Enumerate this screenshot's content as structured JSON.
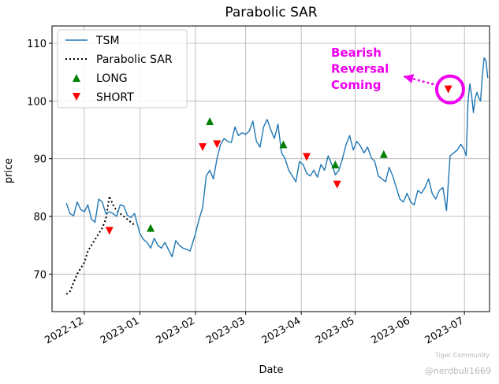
{
  "chart_data": {
    "type": "line",
    "title": "Parabolic SAR",
    "xlabel": "Date",
    "ylabel": "price",
    "ylim": [
      63.5,
      113
    ],
    "xlim": [
      "2022-11-13",
      "2023-07-15"
    ],
    "grid": true,
    "x_ticks": [
      {
        "date": "2022-12-01",
        "label": "2022-12"
      },
      {
        "date": "2023-01-01",
        "label": "2023-01"
      },
      {
        "date": "2023-02-01",
        "label": "2023-02"
      },
      {
        "date": "2023-03-01",
        "label": "2023-03"
      },
      {
        "date": "2023-04-01",
        "label": "2023-04"
      },
      {
        "date": "2023-05-01",
        "label": "2023-05"
      },
      {
        "date": "2023-06-01",
        "label": "2023-06"
      },
      {
        "date": "2023-07-01",
        "label": "2023-07"
      }
    ],
    "y_ticks": [
      70,
      80,
      90,
      100,
      110
    ],
    "legend": {
      "position": "top-left",
      "entries": [
        {
          "label": "TSM",
          "kind": "line"
        },
        {
          "label": "Parabolic SAR",
          "kind": "dotted"
        },
        {
          "label": "LONG",
          "kind": "marker-up"
        },
        {
          "label": "SHORT",
          "kind": "marker-down"
        }
      ]
    },
    "series": [
      {
        "name": "TSM",
        "color": "#1f77b4",
        "points": [
          [
            "2022-11-21",
            82.3
          ],
          [
            "2022-11-23",
            80.5
          ],
          [
            "2022-11-25",
            80.1
          ],
          [
            "2022-11-27",
            82.5
          ],
          [
            "2022-11-29",
            81.2
          ],
          [
            "2022-12-01",
            80.8
          ],
          [
            "2022-12-03",
            82.0
          ],
          [
            "2022-12-05",
            79.5
          ],
          [
            "2022-12-07",
            79.0
          ],
          [
            "2022-12-09",
            83.0
          ],
          [
            "2022-12-11",
            82.5
          ],
          [
            "2022-12-13",
            80.5
          ],
          [
            "2022-12-15",
            80.8
          ],
          [
            "2022-12-17",
            80.5
          ],
          [
            "2022-12-19",
            80.0
          ],
          [
            "2022-12-21",
            82.0
          ],
          [
            "2022-12-23",
            81.8
          ],
          [
            "2022-12-25",
            80.2
          ],
          [
            "2022-12-27",
            79.8
          ],
          [
            "2022-12-29",
            80.5
          ],
          [
            "2023-01-01",
            77.0
          ],
          [
            "2023-01-03",
            76.0
          ],
          [
            "2023-01-05",
            75.5
          ],
          [
            "2023-01-07",
            74.5
          ],
          [
            "2023-01-09",
            76.2
          ],
          [
            "2023-01-11",
            75.0
          ],
          [
            "2023-01-13",
            74.5
          ],
          [
            "2023-01-15",
            75.5
          ],
          [
            "2023-01-17",
            74.2
          ],
          [
            "2023-01-19",
            73.0
          ],
          [
            "2023-01-21",
            75.8
          ],
          [
            "2023-01-23",
            75.0
          ],
          [
            "2023-01-25",
            74.5
          ],
          [
            "2023-01-27",
            74.3
          ],
          [
            "2023-01-29",
            74.0
          ],
          [
            "2023-01-30",
            75.0
          ],
          [
            "2023-02-01",
            77.0
          ],
          [
            "2023-02-03",
            79.5
          ],
          [
            "2023-02-05",
            81.5
          ],
          [
            "2023-02-07",
            87.0
          ],
          [
            "2023-02-09",
            88.0
          ],
          [
            "2023-02-11",
            86.5
          ],
          [
            "2023-02-13",
            90.0
          ],
          [
            "2023-02-15",
            92.5
          ],
          [
            "2023-02-17",
            93.5
          ],
          [
            "2023-02-19",
            93.0
          ],
          [
            "2023-02-21",
            92.8
          ],
          [
            "2023-02-23",
            95.5
          ],
          [
            "2023-02-25",
            94.0
          ],
          [
            "2023-02-27",
            94.5
          ],
          [
            "2023-03-01",
            94.2
          ],
          [
            "2023-03-03",
            94.8
          ],
          [
            "2023-03-05",
            96.5
          ],
          [
            "2023-03-07",
            93.0
          ],
          [
            "2023-03-09",
            92.0
          ],
          [
            "2023-03-11",
            95.5
          ],
          [
            "2023-03-13",
            96.8
          ],
          [
            "2023-03-15",
            95.0
          ],
          [
            "2023-03-17",
            93.5
          ],
          [
            "2023-03-19",
            96.0
          ],
          [
            "2023-03-21",
            91.0
          ],
          [
            "2023-03-23",
            90.0
          ],
          [
            "2023-03-25",
            88.0
          ],
          [
            "2023-03-27",
            87.0
          ],
          [
            "2023-03-29",
            86.0
          ],
          [
            "2023-03-31",
            89.5
          ],
          [
            "2023-04-02",
            89.0
          ],
          [
            "2023-04-04",
            87.5
          ],
          [
            "2023-04-06",
            87.0
          ],
          [
            "2023-04-08",
            88.0
          ],
          [
            "2023-04-10",
            86.8
          ],
          [
            "2023-04-12",
            89.0
          ],
          [
            "2023-04-14",
            88.0
          ],
          [
            "2023-04-16",
            90.5
          ],
          [
            "2023-04-18",
            89.0
          ],
          [
            "2023-04-20",
            87.2
          ],
          [
            "2023-04-22",
            88.0
          ],
          [
            "2023-04-24",
            90.0
          ],
          [
            "2023-04-26",
            92.5
          ],
          [
            "2023-04-28",
            94.0
          ],
          [
            "2023-04-30",
            91.5
          ],
          [
            "2023-05-02",
            93.0
          ],
          [
            "2023-05-04",
            92.2
          ],
          [
            "2023-05-06",
            91.0
          ],
          [
            "2023-05-08",
            92.0
          ],
          [
            "2023-05-10",
            90.2
          ],
          [
            "2023-05-12",
            89.5
          ],
          [
            "2023-05-14",
            87.0
          ],
          [
            "2023-05-16",
            86.5
          ],
          [
            "2023-05-18",
            86.0
          ],
          [
            "2023-05-20",
            88.5
          ],
          [
            "2023-05-22",
            87.0
          ],
          [
            "2023-05-24",
            85.0
          ],
          [
            "2023-05-26",
            83.0
          ],
          [
            "2023-05-28",
            82.5
          ],
          [
            "2023-05-30",
            84.0
          ],
          [
            "2023-06-01",
            82.5
          ],
          [
            "2023-06-03",
            82.0
          ],
          [
            "2023-06-05",
            84.5
          ],
          [
            "2023-06-07",
            84.0
          ],
          [
            "2023-06-09",
            85.0
          ],
          [
            "2023-06-11",
            86.5
          ],
          [
            "2023-06-13",
            84.0
          ],
          [
            "2023-06-15",
            83.0
          ],
          [
            "2023-06-17",
            84.5
          ],
          [
            "2023-06-19",
            85.0
          ],
          [
            "2023-06-21",
            81.0
          ],
          [
            "2023-06-23",
            90.5
          ],
          [
            "2023-06-25",
            91.0
          ],
          [
            "2023-06-27",
            91.5
          ],
          [
            "2023-06-29",
            92.5
          ],
          [
            "2023-07-01",
            91.5
          ],
          [
            "2023-07-02",
            90.5
          ],
          [
            "2023-07-03",
            100.0
          ],
          [
            "2023-07-04",
            103.0
          ],
          [
            "2023-07-05",
            101.0
          ],
          [
            "2023-07-06",
            98.0
          ],
          [
            "2023-07-07",
            100.5
          ],
          [
            "2023-07-08",
            101.5
          ],
          [
            "2023-07-09",
            100.5
          ],
          [
            "2023-07-10",
            100.0
          ],
          [
            "2023-07-11",
            104.5
          ],
          [
            "2023-07-12",
            107.5
          ],
          [
            "2023-07-13",
            107.0
          ],
          [
            "2023-07-14",
            104.0
          ]
        ]
      }
    ],
    "sar": [
      [
        "2022-11-21",
        66.5
      ],
      [
        "2022-11-23",
        67.0
      ],
      [
        "2022-11-25",
        68.5
      ],
      [
        "2022-11-27",
        70.0
      ],
      [
        "2022-11-29",
        71.0
      ],
      [
        "2022-12-01",
        72.0
      ],
      [
        "2022-12-03",
        74.0
      ],
      [
        "2022-12-05",
        75.0
      ],
      [
        "2022-12-07",
        76.0
      ],
      [
        "2022-12-09",
        77.0
      ],
      [
        "2022-12-11",
        78.0
      ],
      [
        "2022-12-13",
        79.5
      ],
      [
        "2022-12-15",
        83.5
      ],
      [
        "2022-12-17",
        82.0
      ],
      [
        "2022-12-19",
        81.0
      ],
      [
        "2022-12-21",
        80.5
      ],
      [
        "2022-12-23",
        80.0
      ],
      [
        "2022-12-25",
        79.5
      ],
      [
        "2022-12-27",
        79.0
      ],
      [
        "2022-12-29",
        78.5
      ]
    ],
    "signals": {
      "long": [
        [
          "2023-01-07",
          78.0
        ],
        [
          "2023-02-09",
          96.5
        ],
        [
          "2023-03-22",
          92.5
        ],
        [
          "2023-04-20",
          89.0
        ],
        [
          "2023-05-17",
          90.8
        ]
      ],
      "short": [
        [
          "2022-12-15",
          77.5
        ],
        [
          "2023-02-05",
          92.0
        ],
        [
          "2023-02-13",
          92.5
        ],
        [
          "2023-04-04",
          90.3
        ],
        [
          "2023-04-21",
          85.5
        ],
        [
          "2023-06-22",
          102.0
        ]
      ]
    },
    "annotation": {
      "lines": [
        "Bearish",
        "Reversal",
        "Coming"
      ],
      "color": "#ee00ee",
      "target": [
        "2023-06-23",
        102.0
      ]
    }
  },
  "watermark": {
    "brand": "Tiger Community",
    "handle": "@nerdbull1669"
  }
}
